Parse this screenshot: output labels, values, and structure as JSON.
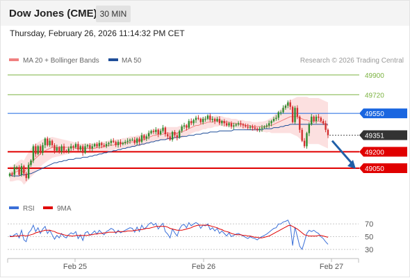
{
  "header": {
    "title": "Dow Jones (CME)",
    "timeframe": "30 MIN",
    "timestamp": "Thursday, February 26, 2026 11:14:32 PM CET"
  },
  "credit": "Research © 2026 Trading Central",
  "chart_data": [
    {
      "type": "candlestick",
      "legend": [
        {
          "label": "MA 20 + Bollinger Bands",
          "color": "#f08080"
        },
        {
          "label": "MA 50",
          "color": "#1f4e99"
        }
      ],
      "ylim": [
        48860,
        49950
      ],
      "x_ticks": [
        "Feb 25",
        "Feb 26",
        "Feb 27"
      ],
      "levels": [
        {
          "value": 49900,
          "label": "49900",
          "kind": "resistance",
          "color": "#7cb342"
        },
        {
          "value": 49720,
          "label": "49720",
          "kind": "resistance",
          "color": "#7cb342"
        },
        {
          "value": 49550,
          "label": "49550",
          "kind": "pivot",
          "color": "#1a66e0"
        },
        {
          "value": 49351,
          "label": "49351",
          "kind": "last",
          "color": "#333333"
        },
        {
          "value": 49200,
          "label": "49200",
          "kind": "support",
          "color": "#e00000"
        },
        {
          "value": 49050,
          "label": "49050",
          "kind": "support",
          "color": "#e00000"
        }
      ],
      "closes": [
        49000,
        48990,
        49060,
        49060,
        48990,
        49070,
        49000,
        48960,
        49080,
        49120,
        49250,
        49180,
        49250,
        49190,
        49260,
        49320,
        49260,
        49300,
        49260,
        49210,
        49240,
        49200,
        49250,
        49210,
        49200,
        49230,
        49250,
        49240,
        49270,
        49220,
        49250,
        49190,
        49250,
        49260,
        49230,
        49250,
        49270,
        49250,
        49280,
        49260,
        49250,
        49270,
        49280,
        49300,
        49290,
        49260,
        49290,
        49270,
        49280,
        49290,
        49300,
        49310,
        49310,
        49280,
        49320,
        49290,
        49350,
        49320,
        49340,
        49370,
        49390,
        49380,
        49400,
        49360,
        49390,
        49420,
        49360,
        49340,
        49310,
        49380,
        49350,
        49330,
        49390,
        49430,
        49440,
        49420,
        49480,
        49460,
        49490,
        49510,
        49500,
        49470,
        49500,
        49500,
        49530,
        49490,
        49500,
        49480,
        49500,
        49460,
        49480,
        49460,
        49440,
        49460,
        49430,
        49440,
        49450,
        49460,
        49450,
        49440,
        49430,
        49420,
        49430,
        49420,
        49410,
        49400,
        49410,
        49420,
        49430,
        49440,
        49460,
        49480,
        49500,
        49510,
        49560,
        49560,
        49600,
        49620,
        49650,
        49610,
        49470,
        49600,
        49520,
        49400,
        49300,
        49250,
        49370,
        49450,
        49520,
        49480,
        49520,
        49510,
        49480,
        49460,
        49400,
        49351
      ],
      "ma20": [
        49000,
        49000,
        49010,
        49020,
        49030,
        49030,
        49010,
        49040,
        49070,
        49100,
        49120,
        49140,
        49160,
        49180,
        49200,
        49210,
        49220,
        49230,
        49240,
        49240,
        49240,
        49240,
        49240,
        49240,
        49240,
        49240,
        49240,
        49240,
        49230,
        49230,
        49230,
        49230,
        49230,
        49230,
        49230,
        49230,
        49230,
        49240,
        49240,
        49240,
        49250,
        49250,
        49260,
        49260,
        49260,
        49270,
        49270,
        49270,
        49280,
        49280,
        49280,
        49290,
        49290,
        49290,
        49300,
        49300,
        49310,
        49310,
        49320,
        49330,
        49340,
        49350,
        49350,
        49360,
        49360,
        49360,
        49370,
        49370,
        49370,
        49370,
        49370,
        49370,
        49380,
        49380,
        49390,
        49400,
        49410,
        49420,
        49430,
        49440,
        49440,
        49450,
        49460,
        49460,
        49470,
        49470,
        49470,
        49480,
        49480,
        49480,
        49480,
        49470,
        49470,
        49470,
        49460,
        49460,
        49460,
        49450,
        49450,
        49450,
        49440,
        49440,
        49440,
        49430,
        49430,
        49430,
        49430,
        49430,
        49430,
        49430,
        49440,
        49440,
        49450,
        49460,
        49470,
        49480,
        49490,
        49500,
        49510,
        49520,
        49520,
        49520,
        49520,
        49510,
        49500,
        49490,
        49490,
        49480,
        49480,
        49480,
        49480,
        49480,
        49470,
        49460,
        49450,
        49440
      ],
      "ma50": [
        48990,
        48980,
        48980,
        48980,
        48980,
        48990,
        48990,
        48990,
        49000,
        49000,
        49010,
        49020,
        49030,
        49040,
        49050,
        49060,
        49070,
        49080,
        49090,
        49100,
        49100,
        49110,
        49110,
        49120,
        49120,
        49130,
        49130,
        49130,
        49140,
        49140,
        49140,
        49150,
        49150,
        49150,
        49160,
        49160,
        49170,
        49170,
        49180,
        49180,
        49190,
        49190,
        49200,
        49200,
        49210,
        49210,
        49220,
        49220,
        49230,
        49230,
        49240,
        49240,
        49250,
        49250,
        49260,
        49260,
        49270,
        49270,
        49280,
        49280,
        49290,
        49290,
        49300,
        49300,
        49310,
        49310,
        49310,
        49320,
        49320,
        49320,
        49330,
        49330,
        49330,
        49340,
        49340,
        49340,
        49350,
        49350,
        49350,
        49360,
        49360,
        49360,
        49370,
        49370,
        49370,
        49380,
        49380,
        49380,
        49380,
        49390,
        49390,
        49390,
        49390,
        49390,
        49390,
        49400,
        49400,
        49400,
        49400,
        49400,
        49400,
        49400,
        49400,
        49400,
        49400,
        49400,
        49400,
        49400,
        49410,
        49410,
        49410,
        49410,
        49420,
        49420,
        49420,
        49430,
        49430,
        49440,
        49440,
        49450,
        49450,
        49450,
        49450,
        49450,
        49450,
        49450,
        49450,
        49450,
        49450,
        49450,
        49450,
        49450,
        49450,
        49450,
        49450,
        49450
      ],
      "bollinger_width": [
        70,
        70,
        75,
        80,
        90,
        100,
        110,
        120,
        125,
        130,
        130,
        130,
        125,
        120,
        115,
        110,
        105,
        100,
        95,
        90,
        85,
        80,
        75,
        70,
        65,
        60,
        55,
        50,
        45,
        45,
        45,
        45,
        45,
        45,
        45,
        45,
        45,
        45,
        45,
        45,
        45,
        45,
        45,
        45,
        45,
        45,
        45,
        45,
        45,
        45,
        50,
        50,
        50,
        50,
        50,
        50,
        50,
        50,
        50,
        50,
        50,
        55,
        55,
        55,
        55,
        55,
        55,
        55,
        55,
        55,
        55,
        55,
        55,
        55,
        55,
        55,
        55,
        55,
        55,
        55,
        55,
        55,
        55,
        55,
        55,
        55,
        50,
        50,
        50,
        45,
        45,
        45,
        40,
        40,
        40,
        40,
        40,
        40,
        40,
        40,
        40,
        40,
        40,
        40,
        40,
        40,
        45,
        45,
        50,
        55,
        60,
        70,
        80,
        90,
        100,
        110,
        120,
        130,
        140,
        150,
        160,
        170,
        180,
        190,
        200,
        210,
        210,
        210,
        210,
        210,
        210,
        210,
        210,
        210,
        210,
        210
      ],
      "forecast_arrow": {
        "from": 49300,
        "to": 49050
      }
    },
    {
      "type": "line",
      "legend": [
        {
          "label": "RSI",
          "color": "#3a6fd8"
        },
        {
          "label": "9MA",
          "color": "#e00000"
        }
      ],
      "ylim": [
        20,
        80
      ],
      "y_ticks": [
        70,
        50,
        30
      ],
      "rsi": [
        52,
        50,
        53,
        55,
        48,
        60,
        45,
        42,
        56,
        60,
        68,
        58,
        64,
        55,
        62,
        66,
        55,
        60,
        53,
        46,
        52,
        48,
        55,
        50,
        48,
        53,
        56,
        54,
        58,
        47,
        53,
        44,
        56,
        58,
        52,
        55,
        59,
        54,
        60,
        56,
        53,
        58,
        60,
        63,
        61,
        55,
        60,
        56,
        58,
        60,
        62,
        64,
        63,
        57,
        65,
        58,
        68,
        62,
        65,
        70,
        72,
        68,
        71,
        62,
        67,
        71,
        58,
        54,
        48,
        62,
        56,
        51,
        62,
        68,
        69,
        64,
        72,
        67,
        70,
        72,
        70,
        63,
        68,
        67,
        70,
        61,
        64,
        59,
        63,
        55,
        59,
        55,
        51,
        56,
        50,
        52,
        54,
        55,
        53,
        51,
        49,
        47,
        50,
        48,
        47,
        45,
        48,
        50,
        52,
        54,
        57,
        60,
        63,
        64,
        70,
        70,
        73,
        74,
        76,
        68,
        36,
        65,
        50,
        35,
        30,
        42,
        55,
        60,
        58,
        60,
        57,
        55,
        50,
        47,
        42,
        38
      ],
      "ma9": [
        50,
        50,
        51,
        51,
        51,
        52,
        52,
        51,
        52,
        53,
        54,
        56,
        57,
        58,
        59,
        60,
        60,
        60,
        59,
        58,
        56,
        55,
        54,
        53,
        52,
        52,
        51,
        51,
        52,
        52,
        52,
        52,
        52,
        52,
        53,
        53,
        54,
        54,
        55,
        55,
        56,
        56,
        57,
        57,
        57,
        57,
        58,
        58,
        58,
        58,
        59,
        59,
        59,
        60,
        60,
        61,
        61,
        62,
        63,
        63,
        64,
        65,
        66,
        66,
        66,
        66,
        66,
        65,
        63,
        62,
        61,
        60,
        60,
        60,
        61,
        62,
        63,
        64,
        66,
        67,
        68,
        68,
        68,
        68,
        68,
        67,
        66,
        65,
        64,
        62,
        61,
        59,
        58,
        57,
        55,
        54,
        53,
        53,
        53,
        52,
        52,
        51,
        51,
        50,
        49,
        49,
        48,
        48,
        49,
        50,
        51,
        53,
        55,
        57,
        59,
        61,
        63,
        65,
        67,
        68,
        66,
        64,
        62,
        59,
        56,
        53,
        52,
        51,
        51,
        51,
        51,
        52,
        52,
        51,
        50,
        49
      ]
    }
  ]
}
